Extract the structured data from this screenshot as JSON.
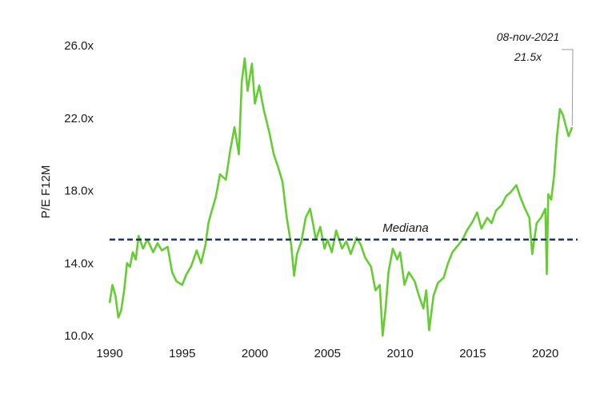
{
  "chart_data": {
    "type": "line",
    "ylabel": "P/E F12M",
    "ylim": [
      10.0,
      26.0
    ],
    "xlim": [
      1990,
      2022
    ],
    "x_ticks": [
      "1990",
      "1995",
      "2000",
      "2005",
      "2010",
      "2015",
      "2020"
    ],
    "y_ticks": [
      "26.0x",
      "22.0x",
      "18.0x",
      "14.0x",
      "10.0x"
    ],
    "grid": false,
    "colors": {
      "series": "#66cc33",
      "median": "#1f3864",
      "annotation_line": "#999999"
    },
    "series": [
      {
        "x": [
          1990.0,
          1990.2,
          1990.4,
          1990.6,
          1990.8,
          1991.0,
          1991.2,
          1991.4,
          1991.6,
          1991.8,
          1992.0,
          1992.3,
          1992.6,
          1993.0,
          1993.3,
          1993.6,
          1994.0,
          1994.3,
          1994.6,
          1995.0,
          1995.3,
          1995.6,
          1996.0,
          1996.3,
          1996.6,
          1996.8,
          1997.0,
          1997.3,
          1997.6,
          1998.0,
          1998.3,
          1998.6,
          1998.9,
          1999.1,
          1999.3,
          1999.5,
          1999.8,
          2000.0,
          2000.3,
          2000.6,
          2001.0,
          2001.3,
          2001.6,
          2001.9,
          2002.2,
          2002.5,
          2002.7,
          2002.9,
          2003.2,
          2003.5,
          2003.8,
          2004.0,
          2004.2,
          2004.5,
          2004.8,
          2005.0,
          2005.3,
          2005.6,
          2006.0,
          2006.3,
          2006.6,
          2007.0,
          2007.3,
          2007.6,
          2008.0,
          2008.3,
          2008.6,
          2008.8,
          2009.0,
          2009.2,
          2009.5,
          2009.8,
          2010.0,
          2010.3,
          2010.6,
          2011.0,
          2011.3,
          2011.6,
          2011.8,
          2012.0,
          2012.3,
          2012.6,
          2013.0,
          2013.3,
          2013.6,
          2014.0,
          2014.3,
          2014.6,
          2015.0,
          2015.3,
          2015.6,
          2016.0,
          2016.3,
          2016.6,
          2017.0,
          2017.3,
          2017.6,
          2018.0,
          2018.3,
          2018.6,
          2018.9,
          2019.1,
          2019.4,
          2019.7,
          2020.0,
          2020.1,
          2020.2,
          2020.4,
          2020.6,
          2020.8,
          2021.0,
          2021.2,
          2021.4,
          2021.6,
          2021.85
        ],
        "y": [
          11.8,
          12.8,
          12.2,
          11.0,
          11.4,
          12.5,
          14.0,
          13.8,
          14.6,
          14.2,
          15.5,
          14.8,
          15.3,
          14.6,
          15.1,
          14.7,
          14.9,
          13.5,
          13.0,
          12.8,
          13.4,
          13.8,
          14.7,
          14.0,
          15.0,
          16.2,
          16.8,
          17.6,
          18.9,
          18.6,
          20.2,
          21.5,
          20.0,
          24.0,
          25.3,
          23.5,
          25.0,
          22.8,
          23.8,
          22.5,
          21.2,
          20.0,
          19.3,
          18.5,
          16.5,
          15.0,
          13.3,
          14.5,
          15.2,
          16.5,
          17.0,
          16.2,
          15.3,
          16.0,
          14.8,
          15.3,
          14.6,
          15.8,
          14.8,
          15.2,
          14.5,
          15.4,
          15.0,
          14.3,
          13.8,
          12.5,
          12.8,
          10.0,
          11.5,
          13.5,
          14.8,
          14.2,
          14.6,
          12.8,
          13.5,
          13.0,
          12.2,
          11.5,
          12.5,
          10.3,
          12.2,
          12.9,
          13.2,
          14.0,
          14.6,
          15.0,
          15.3,
          15.8,
          16.3,
          16.8,
          15.9,
          16.5,
          16.2,
          16.9,
          17.2,
          17.7,
          17.9,
          18.3,
          17.6,
          17.0,
          16.5,
          14.5,
          16.2,
          16.5,
          17.0,
          13.4,
          17.8,
          17.5,
          18.8,
          21.0,
          22.5,
          22.2,
          21.6,
          21.0,
          21.5
        ]
      }
    ],
    "median": {
      "label": "Mediana",
      "value": 15.3
    },
    "annotation": {
      "date": "08-nov-2021",
      "value_label": "21.5x",
      "x": 2021.85,
      "y": 21.5
    }
  }
}
